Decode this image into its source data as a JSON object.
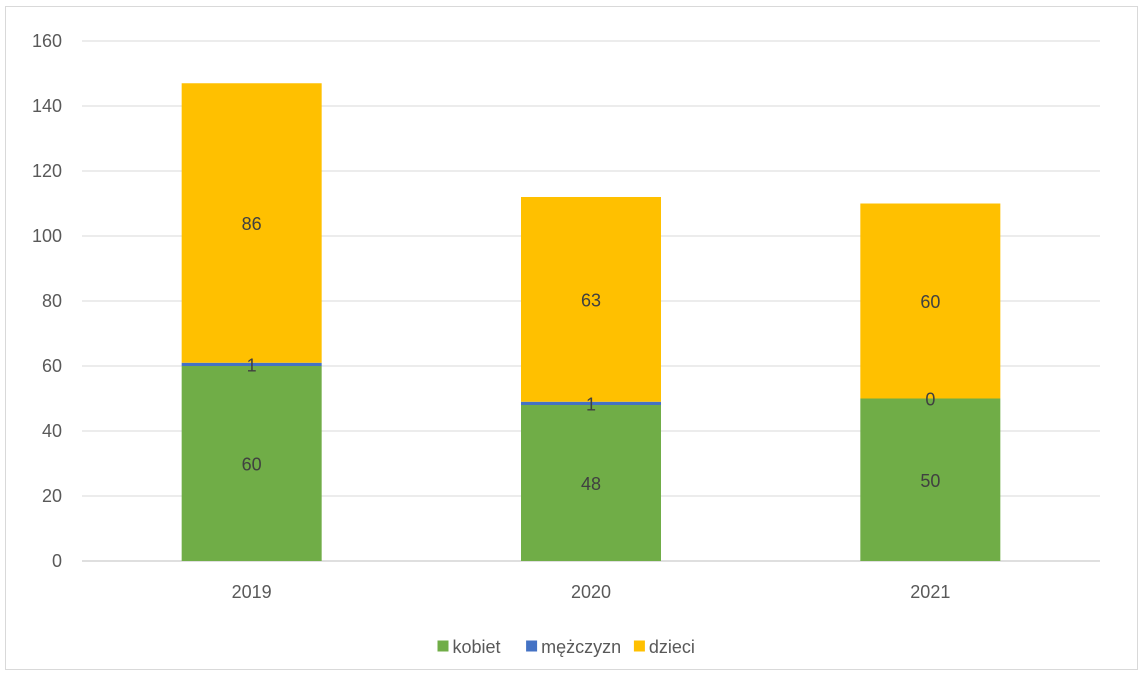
{
  "chart_data": {
    "type": "bar",
    "stacked": true,
    "categories": [
      "2019",
      "2020",
      "2021"
    ],
    "series": [
      {
        "name": "kobiet",
        "values": [
          60,
          48,
          50
        ],
        "color": "#70ad47"
      },
      {
        "name": "mężczyzn",
        "values": [
          1,
          1,
          0
        ],
        "color": "#4472c4"
      },
      {
        "name": "dzieci",
        "values": [
          86,
          63,
          60
        ],
        "color": "#ffc000"
      }
    ],
    "ylim": [
      0,
      160
    ],
    "yticks": [
      0,
      20,
      40,
      60,
      80,
      100,
      120,
      140,
      160
    ],
    "grid": true,
    "legend": "bottom",
    "title": "",
    "xlabel": "",
    "ylabel": ""
  }
}
